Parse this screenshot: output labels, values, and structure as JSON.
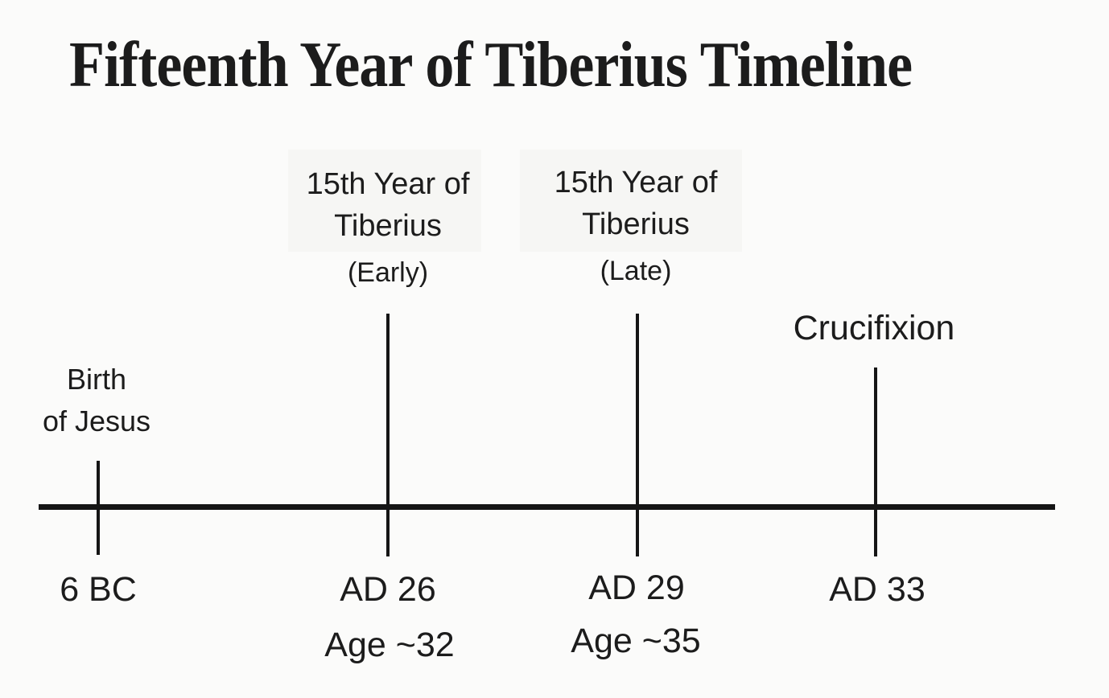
{
  "title": "Fifteenth Year of Tiberius Timeline",
  "figure": {
    "type": "timeline",
    "axis": "horizontal"
  },
  "events": [
    {
      "id": "birth-of-jesus",
      "line1": "Birth",
      "line2": "of Jesus",
      "date": "6 BC"
    },
    {
      "id": "tiberius-15th-year-early",
      "line1": "15th Year of",
      "line2": "Tiberius",
      "sub": "(Early)",
      "date": "AD 26",
      "age": "Age ~32"
    },
    {
      "id": "tiberius-15th-year-late",
      "line1": "15th Year of",
      "line2": "Tiberius",
      "sub": "(Late)",
      "date": "AD 29",
      "age": "Age ~35"
    },
    {
      "id": "crucifixion",
      "line1": "Crucifixion",
      "date": "AD 33"
    }
  ],
  "colors": {
    "text": "#1c1c1c",
    "line": "#151515",
    "background": "#fbfbfa",
    "label_halo": "#f6f6f4"
  }
}
